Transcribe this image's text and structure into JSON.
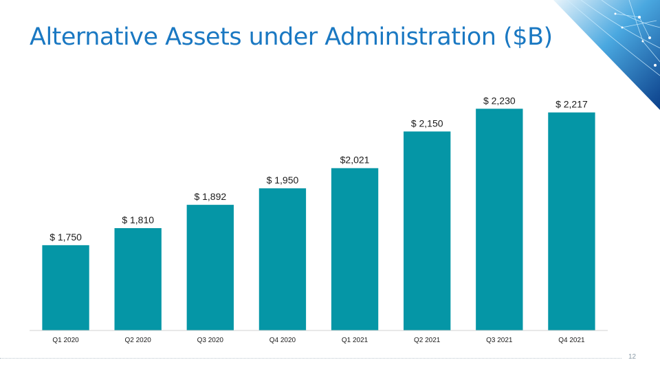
{
  "slide": {
    "title": "Alternative Assets under Administration ($B)",
    "page_number": "12"
  },
  "colors": {
    "title": "#1a78c2",
    "bar": "#0596a6",
    "axis": "#d0d0d0"
  },
  "chart_data": {
    "type": "bar",
    "title": "Alternative Assets under Administration ($B)",
    "xlabel": "",
    "ylabel": "",
    "categories": [
      "Q1 2020",
      "Q2 2020",
      "Q3 2020",
      "Q4 2020",
      "Q1 2021",
      "Q2 2021",
      "Q3 2021",
      "Q4 2021"
    ],
    "values": [
      1750,
      1810,
      1892,
      1950,
      2021,
      2150,
      2230,
      2217
    ],
    "data_labels": [
      "$ 1,750",
      "$ 1,810",
      "$ 1,892",
      "$ 1,950",
      "$2,021",
      "$ 2,150",
      "$ 2,230",
      "$ 2,217"
    ],
    "ylim": [
      1450,
      2250
    ],
    "grid": false,
    "legend": "none"
  }
}
